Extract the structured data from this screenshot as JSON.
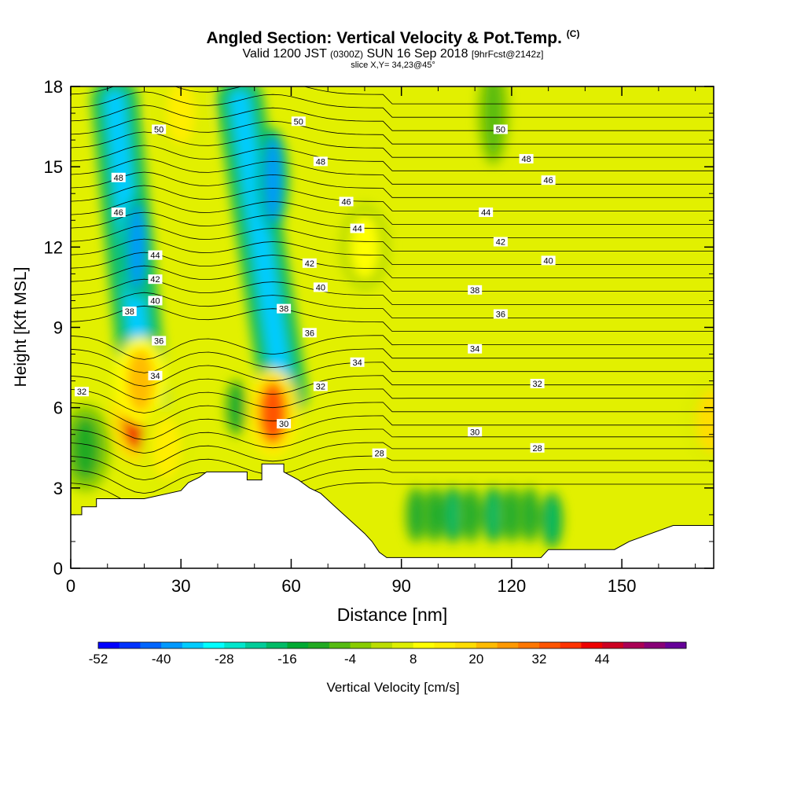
{
  "header": {
    "title": "Angled Section: Vertical Velocity & Pot.Temp.",
    "title_tag": "(C)",
    "valid_prefix": "Valid 1200 JST",
    "valid_utc": "(0300Z)",
    "valid_date": "SUN 16 Sep 2018",
    "forecast": "[9hrFcst@2142z]",
    "slice": "slice X,Y= 34,23@45°"
  },
  "chart_data": {
    "type": "heatmap",
    "xlabel": "Distance [nm]",
    "ylabel": "Height [Kft MSL]",
    "xlim": [
      0,
      175
    ],
    "ylim": [
      0,
      18
    ],
    "x_ticks": [
      0,
      30,
      60,
      90,
      120,
      150
    ],
    "y_ticks": [
      0,
      3,
      6,
      9,
      12,
      15,
      18
    ],
    "colorbar": {
      "label": "Vertical Velocity [cm/s]",
      "tick_labels": [
        -52,
        -40,
        -28,
        -16,
        -4,
        8,
        20,
        32,
        44
      ],
      "min": -52,
      "max": 52,
      "step": 4,
      "colors": [
        "#0000ff",
        "#0033ff",
        "#0066ff",
        "#0099ff",
        "#00ccff",
        "#00ffff",
        "#00e6cc",
        "#00cc99",
        "#00bb66",
        "#00aa33",
        "#22aa22",
        "#55bb11",
        "#88cc00",
        "#bbdd00",
        "#ddee00",
        "#ffff00",
        "#ffee00",
        "#ffdd00",
        "#ffbb00",
        "#ff9900",
        "#ff7700",
        "#ff5500",
        "#ff3300",
        "#ee0000",
        "#cc0022",
        "#aa0055",
        "#880077",
        "#660099"
      ]
    },
    "theta_contour_labels": [
      {
        "value": "32",
        "x": 3,
        "y": 6.6
      },
      {
        "value": "34",
        "x": 23,
        "y": 7.2
      },
      {
        "value": "36",
        "x": 24,
        "y": 8.5
      },
      {
        "value": "38",
        "x": 16,
        "y": 9.6
      },
      {
        "value": "40",
        "x": 23,
        "y": 10.0
      },
      {
        "value": "42",
        "x": 23,
        "y": 10.8
      },
      {
        "value": "44",
        "x": 23,
        "y": 11.7
      },
      {
        "value": "46",
        "x": 13,
        "y": 13.3
      },
      {
        "value": "48",
        "x": 13,
        "y": 14.6
      },
      {
        "value": "50",
        "x": 24,
        "y": 16.4
      },
      {
        "value": "50",
        "x": 62,
        "y": 16.7
      },
      {
        "value": "48",
        "x": 68,
        "y": 15.2
      },
      {
        "value": "46",
        "x": 75,
        "y": 13.7
      },
      {
        "value": "44",
        "x": 78,
        "y": 12.7
      },
      {
        "value": "42",
        "x": 65,
        "y": 11.4
      },
      {
        "value": "40",
        "x": 68,
        "y": 10.5
      },
      {
        "value": "38",
        "x": 58,
        "y": 9.7
      },
      {
        "value": "36",
        "x": 65,
        "y": 8.8
      },
      {
        "value": "34",
        "x": 78,
        "y": 7.7
      },
      {
        "value": "32",
        "x": 68,
        "y": 6.8
      },
      {
        "value": "30",
        "x": 58,
        "y": 5.4
      },
      {
        "value": "28",
        "x": 84,
        "y": 4.3
      },
      {
        "value": "50",
        "x": 117,
        "y": 16.4
      },
      {
        "value": "48",
        "x": 124,
        "y": 15.3
      },
      {
        "value": "46",
        "x": 130,
        "y": 14.5
      },
      {
        "value": "44",
        "x": 113,
        "y": 13.3
      },
      {
        "value": "42",
        "x": 117,
        "y": 12.2
      },
      {
        "value": "40",
        "x": 130,
        "y": 11.5
      },
      {
        "value": "38",
        "x": 110,
        "y": 10.4
      },
      {
        "value": "36",
        "x": 117,
        "y": 9.5
      },
      {
        "value": "34",
        "x": 110,
        "y": 8.2
      },
      {
        "value": "32",
        "x": 127,
        "y": 6.9
      },
      {
        "value": "30",
        "x": 110,
        "y": 5.1
      },
      {
        "value": "28",
        "x": 127,
        "y": 4.5
      }
    ],
    "terrain": [
      [
        0,
        2
      ],
      [
        3,
        2
      ],
      [
        3,
        2.3
      ],
      [
        7,
        2.3
      ],
      [
        7,
        2.6
      ],
      [
        15,
        2.6
      ],
      [
        20,
        2.6
      ],
      [
        30,
        2.9
      ],
      [
        32,
        3.2
      ],
      [
        35,
        3.4
      ],
      [
        37,
        3.6
      ],
      [
        48,
        3.6
      ],
      [
        48,
        3.3
      ],
      [
        52,
        3.3
      ],
      [
        52,
        3.9
      ],
      [
        58,
        3.9
      ],
      [
        58,
        3.6
      ],
      [
        62,
        3.3
      ],
      [
        65,
        3
      ],
      [
        68,
        2.8
      ],
      [
        72,
        2.3
      ],
      [
        76,
        1.8
      ],
      [
        80,
        1.3
      ],
      [
        82,
        1
      ],
      [
        84,
        0.6
      ],
      [
        86,
        0.4
      ],
      [
        90,
        0.4
      ],
      [
        100,
        0.4
      ],
      [
        110,
        0.4
      ],
      [
        120,
        0.4
      ],
      [
        128,
        0.4
      ],
      [
        130,
        0.7
      ],
      [
        140,
        0.7
      ],
      [
        148,
        0.7
      ],
      [
        152,
        1
      ],
      [
        158,
        1.3
      ],
      [
        164,
        1.6
      ],
      [
        175,
        1.6
      ]
    ],
    "updraft_cores": [
      {
        "x": 4,
        "y": 4.5,
        "w": -10
      },
      {
        "x": 18,
        "y": 5.6,
        "w": 40
      },
      {
        "x": 19,
        "y": 7.0,
        "w": 20
      },
      {
        "x": 26,
        "y": 4.5,
        "w": 12
      },
      {
        "x": 55,
        "y": 5.8,
        "w": 32
      },
      {
        "x": 30,
        "y": 17.0,
        "w": 12
      },
      {
        "x": 80,
        "y": 12.0,
        "w": 8
      },
      {
        "x": 175,
        "y": 5.5,
        "w": 16
      }
    ],
    "downdraft_bands": [
      {
        "x0": 12,
        "y0": 17.5,
        "x1": 20,
        "y1": 6.5,
        "w": -36
      },
      {
        "x0": 46,
        "y0": 17.5,
        "x1": 58,
        "y1": 6.5,
        "w": -36
      }
    ],
    "downdraft_cores": [
      {
        "x": 18,
        "y": 12.0,
        "w": -40
      },
      {
        "x": 55,
        "y": 14.5,
        "w": -40
      },
      {
        "x": 45,
        "y": 6.0,
        "w": -16
      },
      {
        "x": 94,
        "y": 2.0,
        "w": -16
      },
      {
        "x": 99,
        "y": 2.0,
        "w": -16
      },
      {
        "x": 104,
        "y": 2.0,
        "w": -18
      },
      {
        "x": 109,
        "y": 2.0,
        "w": -16
      },
      {
        "x": 115,
        "y": 2.0,
        "w": -18
      },
      {
        "x": 120,
        "y": 2.0,
        "w": -16
      },
      {
        "x": 125,
        "y": 2.0,
        "w": -16
      },
      {
        "x": 131,
        "y": 1.8,
        "w": -18
      },
      {
        "x": 115,
        "y": 17.0,
        "w": -8
      }
    ]
  }
}
